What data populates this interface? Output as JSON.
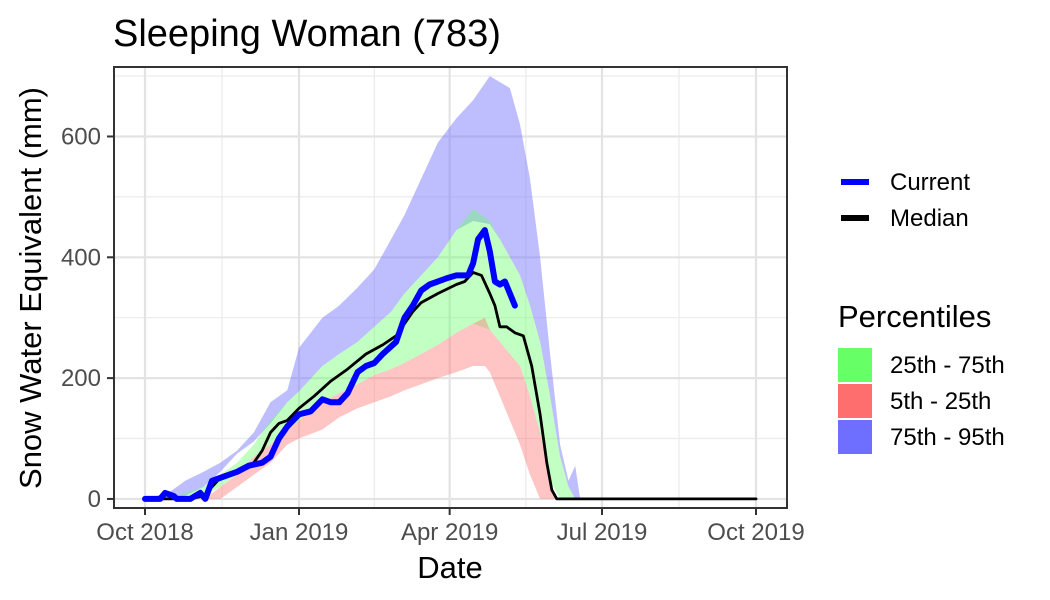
{
  "chart_data": {
    "type": "area",
    "title": "Sleeping Woman (783)",
    "xlabel": "Date",
    "ylabel": "Snow Water Equivalent (mm)",
    "x_type": "date",
    "xlim": [
      "2018-10-01",
      "2019-10-01"
    ],
    "ylim": [
      -15,
      715
    ],
    "xticks": [
      {
        "date": "2018-10-01",
        "label": "Oct 2018"
      },
      {
        "date": "2019-01-01",
        "label": "Jan 2019"
      },
      {
        "date": "2019-04-01",
        "label": "Apr 2019"
      },
      {
        "date": "2019-07-01",
        "label": "Jul 2019"
      },
      {
        "date": "2019-10-01",
        "label": "Oct 2019"
      }
    ],
    "yticks": [
      0,
      200,
      400,
      600
    ],
    "grid": true,
    "legend_placement": "right",
    "legend": {
      "lines": [
        {
          "label": "Current",
          "color": "#0000ff"
        },
        {
          "label": "Median",
          "color": "#000000"
        }
      ],
      "fill_title": "Percentiles",
      "fills": [
        {
          "label": "25th - 75th",
          "color": "#66ff66"
        },
        {
          "label": "5th - 25th",
          "color": "#ff6e6e"
        },
        {
          "label": "75th - 95th",
          "color": "#6e6eff"
        }
      ]
    },
    "bands": [
      {
        "name": "75th - 95th",
        "color": "#6e6eff",
        "opacity": 0.45,
        "points": [
          [
            "2018-10-01",
            0,
            0
          ],
          [
            "2018-10-15",
            0,
            10
          ],
          [
            "2018-10-20",
            0,
            20
          ],
          [
            "2018-10-25",
            5,
            30
          ],
          [
            "2018-11-05",
            20,
            45
          ],
          [
            "2018-11-15",
            45,
            60
          ],
          [
            "2018-11-25",
            75,
            80
          ],
          [
            "2018-12-05",
            95,
            110
          ],
          [
            "2018-12-15",
            125,
            160
          ],
          [
            "2018-12-25",
            160,
            180
          ],
          [
            "2019-01-01",
            178,
            250
          ],
          [
            "2019-01-15",
            220,
            300
          ],
          [
            "2019-01-25",
            240,
            320
          ],
          [
            "2019-02-05",
            260,
            350
          ],
          [
            "2019-02-15",
            285,
            380
          ],
          [
            "2019-02-25",
            310,
            430
          ],
          [
            "2019-03-05",
            340,
            470
          ],
          [
            "2019-03-15",
            370,
            530
          ],
          [
            "2019-03-25",
            400,
            590
          ],
          [
            "2019-04-05",
            445,
            630
          ],
          [
            "2019-04-15",
            460,
            660
          ],
          [
            "2019-04-25",
            455,
            700
          ],
          [
            "2019-05-01",
            430,
            690
          ],
          [
            "2019-05-07",
            400,
            680
          ],
          [
            "2019-05-13",
            370,
            620
          ],
          [
            "2019-05-19",
            320,
            530
          ],
          [
            "2019-05-25",
            260,
            400
          ],
          [
            "2019-05-31",
            170,
            240
          ],
          [
            "2019-06-06",
            70,
            90
          ],
          [
            "2019-06-11",
            20,
            30
          ],
          [
            "2019-06-15",
            0,
            55
          ],
          [
            "2019-06-18",
            0,
            0
          ]
        ]
      },
      {
        "name": "25th - 75th",
        "color": "#66ff66",
        "opacity": 0.4,
        "points": [
          [
            "2018-10-01",
            0,
            0
          ],
          [
            "2018-10-20",
            0,
            5
          ],
          [
            "2018-10-25",
            0,
            10
          ],
          [
            "2018-11-05",
            5,
            20
          ],
          [
            "2018-11-15",
            20,
            40
          ],
          [
            "2018-11-25",
            40,
            60
          ],
          [
            "2018-12-05",
            70,
            90
          ],
          [
            "2018-12-15",
            90,
            130
          ],
          [
            "2018-12-25",
            115,
            160
          ],
          [
            "2019-01-01",
            130,
            178
          ],
          [
            "2019-01-15",
            160,
            220
          ],
          [
            "2019-01-25",
            175,
            240
          ],
          [
            "2019-02-05",
            190,
            260
          ],
          [
            "2019-02-15",
            205,
            285
          ],
          [
            "2019-02-25",
            215,
            310
          ],
          [
            "2019-03-05",
            225,
            340
          ],
          [
            "2019-03-15",
            240,
            370
          ],
          [
            "2019-03-25",
            255,
            400
          ],
          [
            "2019-04-05",
            275,
            445
          ],
          [
            "2019-04-15",
            290,
            480
          ],
          [
            "2019-04-25",
            280,
            460
          ],
          [
            "2019-05-01",
            260,
            430
          ],
          [
            "2019-05-07",
            240,
            400
          ],
          [
            "2019-05-13",
            220,
            370
          ],
          [
            "2019-05-19",
            170,
            320
          ],
          [
            "2019-05-25",
            110,
            260
          ],
          [
            "2019-05-31",
            30,
            170
          ],
          [
            "2019-06-06",
            0,
            70
          ],
          [
            "2019-06-11",
            0,
            20
          ],
          [
            "2019-06-15",
            0,
            0
          ]
        ]
      },
      {
        "name": "5th - 25th",
        "color": "#ff6e6e",
        "opacity": 0.4,
        "points": [
          [
            "2018-10-01",
            0,
            0
          ],
          [
            "2018-11-08",
            0,
            5
          ],
          [
            "2018-11-15",
            0,
            20
          ],
          [
            "2018-11-25",
            20,
            40
          ],
          [
            "2018-12-05",
            40,
            70
          ],
          [
            "2018-12-15",
            60,
            90
          ],
          [
            "2018-12-25",
            90,
            115
          ],
          [
            "2019-01-01",
            100,
            130
          ],
          [
            "2019-01-15",
            115,
            160
          ],
          [
            "2019-01-25",
            135,
            175
          ],
          [
            "2019-02-05",
            150,
            190
          ],
          [
            "2019-02-15",
            160,
            205
          ],
          [
            "2019-02-25",
            170,
            215
          ],
          [
            "2019-03-05",
            180,
            225
          ],
          [
            "2019-03-15",
            190,
            240
          ],
          [
            "2019-03-25",
            200,
            255
          ],
          [
            "2019-04-05",
            210,
            275
          ],
          [
            "2019-04-15",
            220,
            290
          ],
          [
            "2019-04-22",
            220,
            300
          ],
          [
            "2019-04-25",
            210,
            280
          ],
          [
            "2019-05-01",
            170,
            260
          ],
          [
            "2019-05-07",
            130,
            240
          ],
          [
            "2019-05-13",
            90,
            220
          ],
          [
            "2019-05-19",
            40,
            170
          ],
          [
            "2019-05-25",
            0,
            110
          ],
          [
            "2019-05-31",
            0,
            30
          ],
          [
            "2019-06-04",
            0,
            0
          ]
        ]
      }
    ],
    "series": [
      {
        "name": "Median",
        "color": "#000000",
        "points": [
          [
            "2018-10-01",
            0
          ],
          [
            "2018-10-20",
            0
          ],
          [
            "2018-10-28",
            0
          ],
          [
            "2018-11-05",
            5
          ],
          [
            "2018-11-10",
            20
          ],
          [
            "2018-11-15",
            35
          ],
          [
            "2018-11-25",
            45
          ],
          [
            "2018-12-05",
            60
          ],
          [
            "2018-12-10",
            80
          ],
          [
            "2018-12-15",
            110
          ],
          [
            "2018-12-20",
            125
          ],
          [
            "2018-12-25",
            130
          ],
          [
            "2019-01-01",
            150
          ],
          [
            "2019-01-10",
            170
          ],
          [
            "2019-01-20",
            195
          ],
          [
            "2019-01-30",
            215
          ],
          [
            "2019-02-10",
            240
          ],
          [
            "2019-02-20",
            255
          ],
          [
            "2019-02-28",
            270
          ],
          [
            "2019-03-05",
            290
          ],
          [
            "2019-03-10",
            310
          ],
          [
            "2019-03-15",
            325
          ],
          [
            "2019-03-25",
            340
          ],
          [
            "2019-04-05",
            355
          ],
          [
            "2019-04-10",
            360
          ],
          [
            "2019-04-15",
            375
          ],
          [
            "2019-04-20",
            370
          ],
          [
            "2019-04-25",
            340
          ],
          [
            "2019-04-28",
            320
          ],
          [
            "2019-05-01",
            285
          ],
          [
            "2019-05-05",
            285
          ],
          [
            "2019-05-10",
            275
          ],
          [
            "2019-05-15",
            270
          ],
          [
            "2019-05-20",
            220
          ],
          [
            "2019-05-25",
            140
          ],
          [
            "2019-05-29",
            60
          ],
          [
            "2019-06-01",
            15
          ],
          [
            "2019-06-04",
            0
          ],
          [
            "2019-10-01",
            0
          ]
        ]
      },
      {
        "name": "Current",
        "color": "#0000ff",
        "points": [
          [
            "2018-10-01",
            0
          ],
          [
            "2018-10-10",
            0
          ],
          [
            "2018-10-13",
            10
          ],
          [
            "2018-10-18",
            5
          ],
          [
            "2018-10-20",
            0
          ],
          [
            "2018-10-28",
            0
          ],
          [
            "2018-11-03",
            10
          ],
          [
            "2018-11-06",
            0
          ],
          [
            "2018-11-10",
            30
          ],
          [
            "2018-11-15",
            35
          ],
          [
            "2018-11-25",
            45
          ],
          [
            "2018-12-02",
            55
          ],
          [
            "2018-12-10",
            60
          ],
          [
            "2018-12-15",
            70
          ],
          [
            "2018-12-20",
            100
          ],
          [
            "2018-12-25",
            120
          ],
          [
            "2019-01-01",
            140
          ],
          [
            "2019-01-08",
            145
          ],
          [
            "2019-01-15",
            165
          ],
          [
            "2019-01-20",
            160
          ],
          [
            "2019-01-25",
            160
          ],
          [
            "2019-01-30",
            175
          ],
          [
            "2019-02-05",
            210
          ],
          [
            "2019-02-10",
            220
          ],
          [
            "2019-02-15",
            225
          ],
          [
            "2019-02-20",
            240
          ],
          [
            "2019-02-28",
            260
          ],
          [
            "2019-03-05",
            300
          ],
          [
            "2019-03-10",
            320
          ],
          [
            "2019-03-15",
            345
          ],
          [
            "2019-03-20",
            355
          ],
          [
            "2019-03-30",
            365
          ],
          [
            "2019-04-05",
            370
          ],
          [
            "2019-04-12",
            370
          ],
          [
            "2019-04-15",
            390
          ],
          [
            "2019-04-18",
            430
          ],
          [
            "2019-04-22",
            445
          ],
          [
            "2019-04-25",
            410
          ],
          [
            "2019-04-28",
            360
          ],
          [
            "2019-05-01",
            355
          ],
          [
            "2019-05-04",
            360
          ],
          [
            "2019-05-07",
            340
          ],
          [
            "2019-05-10",
            320
          ]
        ]
      }
    ]
  }
}
